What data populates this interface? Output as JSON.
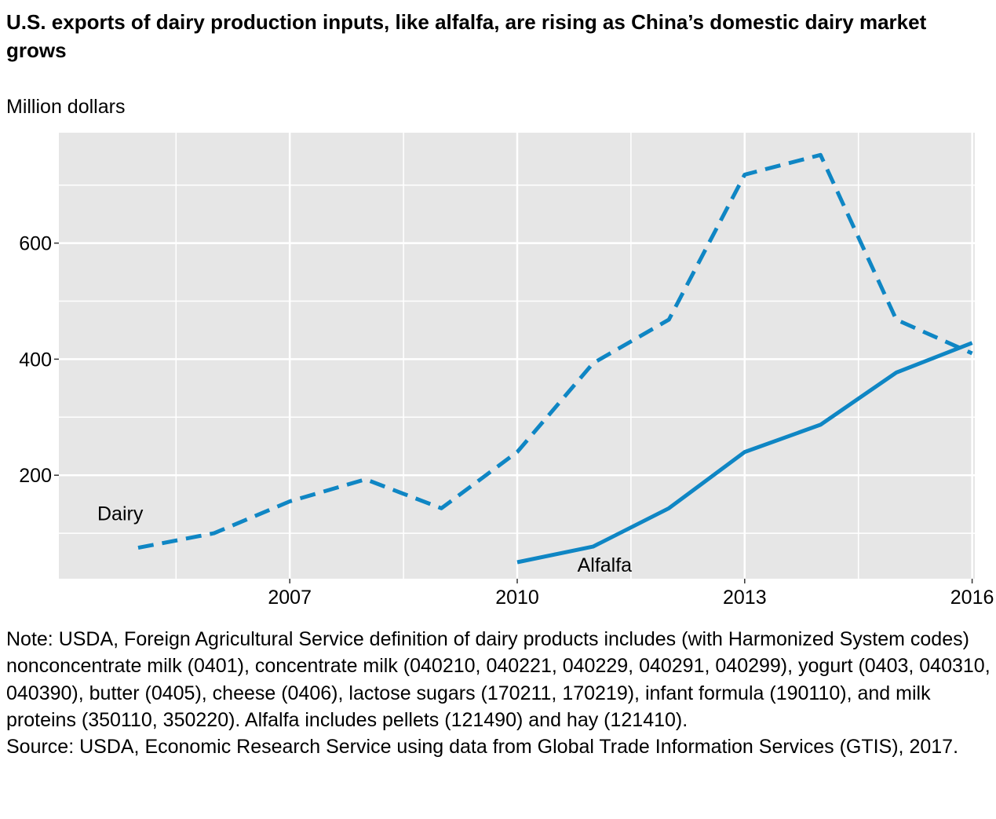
{
  "chart_data": {
    "type": "line",
    "title": "U.S. exports of dairy production inputs, like alfalfa, are rising as China’s domestic dairy market grows",
    "ylabel": "Million dollars",
    "xlabel": "",
    "xlim": [
      2005,
      2016.55
    ],
    "ylim": [
      0,
      765
    ],
    "x_ticks": [
      2007,
      2010,
      2013,
      2016
    ],
    "x_tick_labels": [
      "2007",
      "2010",
      "2013",
      "2016"
    ],
    "y_ticks": [
      200,
      400,
      600
    ],
    "y_tick_labels": [
      "200",
      "400",
      "600"
    ],
    "grid": true,
    "legend": "none",
    "series": [
      {
        "name": "Dairy",
        "style": "dashed",
        "color": "#0f86c4",
        "x": [
          2005,
          2006,
          2007,
          2008,
          2009,
          2010,
          2011,
          2012,
          2013,
          2014,
          2015,
          2016
        ],
        "values": [
          75,
          100,
          155,
          193,
          143,
          240,
          393,
          468,
          718,
          752,
          468,
          410
        ]
      },
      {
        "name": "Alfalfa",
        "style": "solid",
        "color": "#0f86c4",
        "x": [
          2010,
          2011,
          2012,
          2013,
          2014,
          2015,
          2016
        ],
        "values": [
          50,
          77,
          143,
          240,
          287,
          377,
          428
        ]
      }
    ]
  },
  "note": {
    "note_text": "Note: USDA, Foreign Agricultural Service definition of dairy products includes (with Harmonized System codes) nonconcentrate milk (0401), concentrate milk (040210, 040221, 040229, 040291, 040299), yogurt (0403, 040310, 040390), butter (0405), cheese (0406), lactose sugars (170211, 170219), infant formula (190110), and milk proteins (350110, 350220). Alfalfa includes pellets (121490) and hay (121410).",
    "source_text": "Source: USDA, Economic Research Service using data from Global Trade Information Services (GTIS), 2017."
  }
}
